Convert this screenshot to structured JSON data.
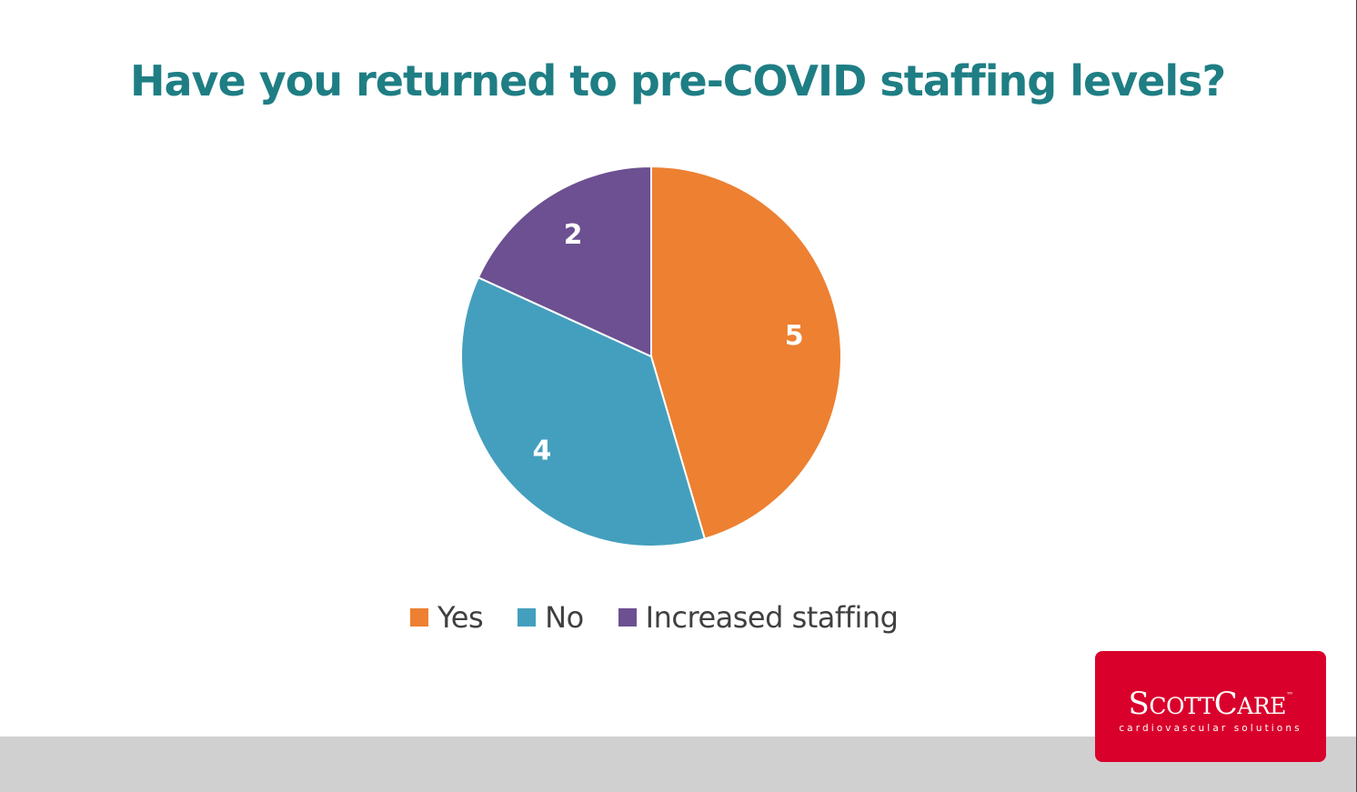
{
  "slide": {
    "title": "Have you returned to pre-COVID staffing levels?"
  },
  "chart_data": {
    "type": "pie",
    "title": "Have you returned to pre-COVID staffing levels?",
    "categories": [
      "Yes",
      "No",
      "Increased staffing"
    ],
    "values": [
      5,
      4,
      2
    ],
    "colors": [
      "#ed8031",
      "#449fbe",
      "#6c5091"
    ],
    "data_labels": [
      "5",
      "4",
      "2"
    ],
    "start_angle_deg": 0,
    "direction": "clockwise",
    "legend_position": "bottom"
  },
  "legend": {
    "items": [
      {
        "label": "Yes",
        "color": "#ed8031"
      },
      {
        "label": "No",
        "color": "#449fbe"
      },
      {
        "label": "Increased staffing",
        "color": "#6c5091"
      }
    ]
  },
  "logo": {
    "brand_first": "S",
    "brand_small_1": "COTT",
    "brand_mid": "C",
    "brand_small_2": "ARE",
    "trademark": "™",
    "tagline": "cardiovascular solutions",
    "color": "#d9002b"
  },
  "footer": {
    "color": "#d0d0d0"
  }
}
